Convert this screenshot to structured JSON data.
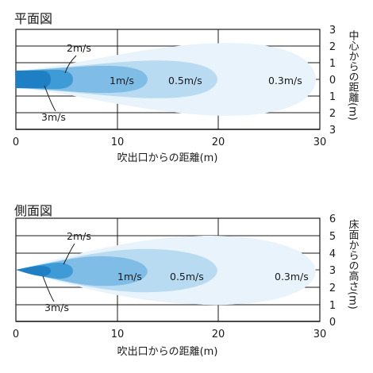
{
  "plan": {
    "title": "平面図",
    "xlabel": "吹出口からの距離(m)",
    "ylabel": "中心からの距離(m)",
    "x_ticks": [
      "0",
      "10",
      "20",
      "30"
    ],
    "y_ticks": [
      "3",
      "2",
      "1",
      "0",
      "1",
      "2",
      "3"
    ],
    "zones": {
      "v03": "0.3m/s",
      "v05": "0.5m/s",
      "v1": "1m/s",
      "v2": "2m/s",
      "v3": "3m/s"
    }
  },
  "side": {
    "title": "側面図",
    "xlabel": "吹出口からの距離(m)",
    "ylabel": "床面からの高さ(m)",
    "x_ticks": [
      "0",
      "10",
      "20",
      "30"
    ],
    "y_ticks": [
      "6",
      "5",
      "4",
      "3",
      "2",
      "1",
      "0"
    ],
    "zones": {
      "v03": "0.3m/s",
      "v05": "0.5m/s",
      "v1": "1m/s",
      "v2": "2m/s",
      "v3": "3m/s"
    }
  },
  "colors": {
    "v03": "#e8f3fb",
    "v05": "#b9dbf2",
    "v1": "#7fbde6",
    "v2": "#3f9bd6",
    "v3": "#1f7fc4",
    "line": "#1a1a1a"
  }
}
